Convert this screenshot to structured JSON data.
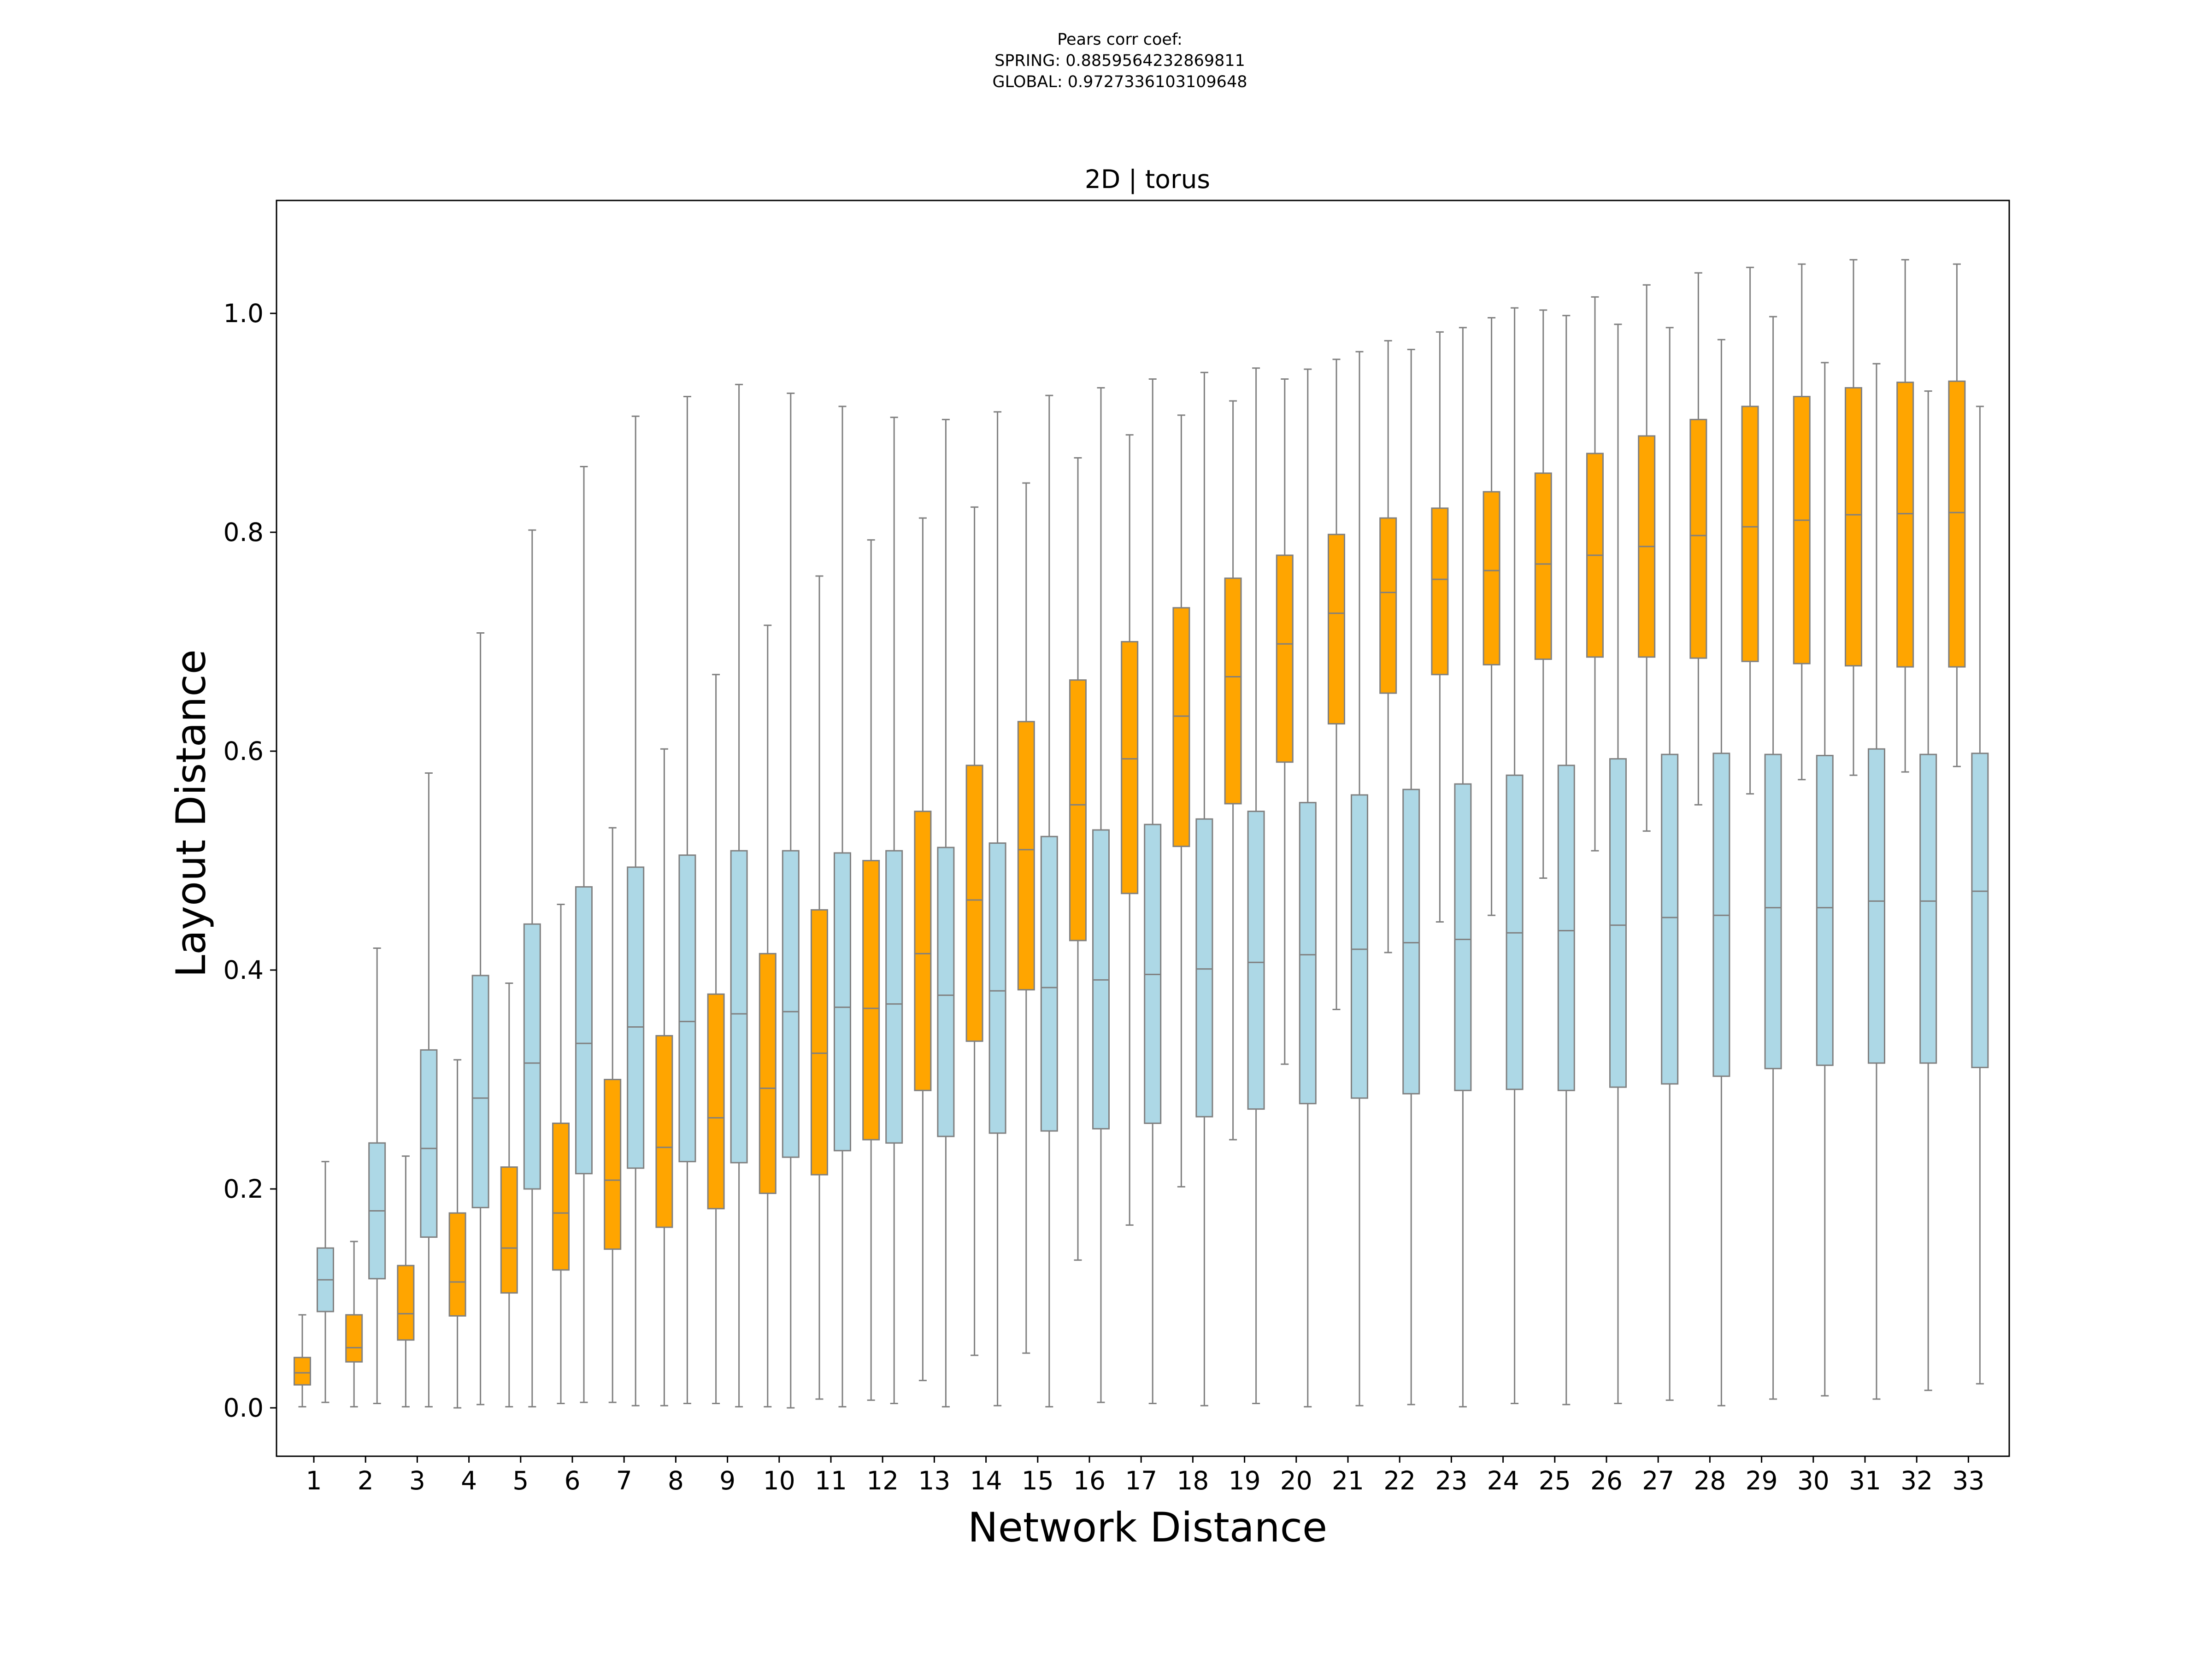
{
  "chart_data": {
    "type": "boxplot",
    "suptitle_lines": [
      "Pears corr coef:",
      "SPRING: 0.8859564232869811",
      "GLOBAL: 0.9727336103109648"
    ],
    "title": "2D | torus",
    "xlabel": "Network Distance",
    "ylabel": "Layout Distance",
    "ylim": [
      -0.05,
      1.1
    ],
    "yticks": [
      0.0,
      0.2,
      0.4,
      0.6,
      0.8,
      1.0
    ],
    "ytick_labels": [
      "0.0",
      "0.2",
      "0.4",
      "0.6",
      "0.8",
      "1.0"
    ],
    "categories": [
      "1",
      "2",
      "3",
      "4",
      "5",
      "6",
      "7",
      "8",
      "9",
      "10",
      "11",
      "12",
      "13",
      "14",
      "15",
      "16",
      "17",
      "18",
      "19",
      "20",
      "21",
      "22",
      "23",
      "24",
      "25",
      "26",
      "27",
      "28",
      "29",
      "30",
      "31",
      "32",
      "33"
    ],
    "colors": {
      "spring": "#ffa500",
      "global": "#add8e6",
      "edge": "#808080",
      "axis": "#000000"
    },
    "series": [
      {
        "name": "SPRING",
        "color": "#ffa500",
        "boxes": [
          {
            "min": 0.001,
            "q1": 0.021,
            "median": 0.032,
            "q3": 0.046,
            "max": 0.085
          },
          {
            "min": 0.001,
            "q1": 0.042,
            "median": 0.055,
            "q3": 0.085,
            "max": 0.152
          },
          {
            "min": 0.001,
            "q1": 0.062,
            "median": 0.086,
            "q3": 0.13,
            "max": 0.23
          },
          {
            "min": 0.0,
            "q1": 0.084,
            "median": 0.115,
            "q3": 0.178,
            "max": 0.318
          },
          {
            "min": 0.001,
            "q1": 0.105,
            "median": 0.146,
            "q3": 0.22,
            "max": 0.388
          },
          {
            "min": 0.004,
            "q1": 0.126,
            "median": 0.178,
            "q3": 0.26,
            "max": 0.46
          },
          {
            "min": 0.005,
            "q1": 0.145,
            "median": 0.208,
            "q3": 0.3,
            "max": 0.53
          },
          {
            "min": 0.002,
            "q1": 0.165,
            "median": 0.238,
            "q3": 0.34,
            "max": 0.602
          },
          {
            "min": 0.004,
            "q1": 0.182,
            "median": 0.265,
            "q3": 0.378,
            "max": 0.67
          },
          {
            "min": 0.001,
            "q1": 0.196,
            "median": 0.292,
            "q3": 0.415,
            "max": 0.715
          },
          {
            "min": 0.008,
            "q1": 0.213,
            "median": 0.324,
            "q3": 0.455,
            "max": 0.76
          },
          {
            "min": 0.007,
            "q1": 0.245,
            "median": 0.365,
            "q3": 0.5,
            "max": 0.793
          },
          {
            "min": 0.025,
            "q1": 0.29,
            "median": 0.415,
            "q3": 0.545,
            "max": 0.813
          },
          {
            "min": 0.048,
            "q1": 0.335,
            "median": 0.464,
            "q3": 0.587,
            "max": 0.823
          },
          {
            "min": 0.05,
            "q1": 0.382,
            "median": 0.51,
            "q3": 0.627,
            "max": 0.845
          },
          {
            "min": 0.135,
            "q1": 0.427,
            "median": 0.551,
            "q3": 0.665,
            "max": 0.868
          },
          {
            "min": 0.167,
            "q1": 0.47,
            "median": 0.593,
            "q3": 0.7,
            "max": 0.889
          },
          {
            "min": 0.202,
            "q1": 0.513,
            "median": 0.632,
            "q3": 0.731,
            "max": 0.907
          },
          {
            "min": 0.245,
            "q1": 0.552,
            "median": 0.668,
            "q3": 0.758,
            "max": 0.92
          },
          {
            "min": 0.314,
            "q1": 0.59,
            "median": 0.698,
            "q3": 0.779,
            "max": 0.94
          },
          {
            "min": 0.364,
            "q1": 0.625,
            "median": 0.726,
            "q3": 0.798,
            "max": 0.958
          },
          {
            "min": 0.416,
            "q1": 0.653,
            "median": 0.745,
            "q3": 0.813,
            "max": 0.975
          },
          {
            "min": 0.444,
            "q1": 0.67,
            "median": 0.757,
            "q3": 0.822,
            "max": 0.983
          },
          {
            "min": 0.45,
            "q1": 0.679,
            "median": 0.765,
            "q3": 0.837,
            "max": 0.996
          },
          {
            "min": 0.484,
            "q1": 0.684,
            "median": 0.771,
            "q3": 0.854,
            "max": 1.003
          },
          {
            "min": 0.509,
            "q1": 0.686,
            "median": 0.779,
            "q3": 0.872,
            "max": 1.015
          },
          {
            "min": 0.527,
            "q1": 0.686,
            "median": 0.787,
            "q3": 0.888,
            "max": 1.026
          },
          {
            "min": 0.551,
            "q1": 0.685,
            "median": 0.797,
            "q3": 0.903,
            "max": 1.037
          },
          {
            "min": 0.561,
            "q1": 0.682,
            "median": 0.805,
            "q3": 0.915,
            "max": 1.042
          },
          {
            "min": 0.574,
            "q1": 0.68,
            "median": 0.811,
            "q3": 0.924,
            "max": 1.045
          },
          {
            "min": 0.578,
            "q1": 0.678,
            "median": 0.816,
            "q3": 0.932,
            "max": 1.049
          },
          {
            "min": 0.581,
            "q1": 0.677,
            "median": 0.817,
            "q3": 0.937,
            "max": 1.049
          },
          {
            "min": 0.586,
            "q1": 0.677,
            "median": 0.818,
            "q3": 0.938,
            "max": 1.045
          }
        ]
      },
      {
        "name": "GLOBAL",
        "color": "#add8e6",
        "boxes": [
          {
            "min": 0.005,
            "q1": 0.088,
            "median": 0.117,
            "q3": 0.146,
            "max": 0.225
          },
          {
            "min": 0.004,
            "q1": 0.118,
            "median": 0.18,
            "q3": 0.242,
            "max": 0.42
          },
          {
            "min": 0.001,
            "q1": 0.156,
            "median": 0.237,
            "q3": 0.327,
            "max": 0.58
          },
          {
            "min": 0.003,
            "q1": 0.183,
            "median": 0.283,
            "q3": 0.395,
            "max": 0.708
          },
          {
            "min": 0.001,
            "q1": 0.2,
            "median": 0.315,
            "q3": 0.442,
            "max": 0.802
          },
          {
            "min": 0.005,
            "q1": 0.214,
            "median": 0.333,
            "q3": 0.476,
            "max": 0.86
          },
          {
            "min": 0.002,
            "q1": 0.219,
            "median": 0.348,
            "q3": 0.494,
            "max": 0.906
          },
          {
            "min": 0.004,
            "q1": 0.225,
            "median": 0.353,
            "q3": 0.505,
            "max": 0.924
          },
          {
            "min": 0.001,
            "q1": 0.224,
            "median": 0.36,
            "q3": 0.509,
            "max": 0.935
          },
          {
            "min": 0.0,
            "q1": 0.229,
            "median": 0.362,
            "q3": 0.509,
            "max": 0.927
          },
          {
            "min": 0.001,
            "q1": 0.235,
            "median": 0.366,
            "q3": 0.507,
            "max": 0.915
          },
          {
            "min": 0.004,
            "q1": 0.242,
            "median": 0.369,
            "q3": 0.509,
            "max": 0.905
          },
          {
            "min": 0.001,
            "q1": 0.248,
            "median": 0.377,
            "q3": 0.512,
            "max": 0.903
          },
          {
            "min": 0.002,
            "q1": 0.251,
            "median": 0.381,
            "q3": 0.516,
            "max": 0.91
          },
          {
            "min": 0.001,
            "q1": 0.253,
            "median": 0.384,
            "q3": 0.522,
            "max": 0.925
          },
          {
            "min": 0.005,
            "q1": 0.255,
            "median": 0.391,
            "q3": 0.528,
            "max": 0.932
          },
          {
            "min": 0.004,
            "q1": 0.26,
            "median": 0.396,
            "q3": 0.533,
            "max": 0.94
          },
          {
            "min": 0.002,
            "q1": 0.266,
            "median": 0.401,
            "q3": 0.538,
            "max": 0.946
          },
          {
            "min": 0.004,
            "q1": 0.273,
            "median": 0.407,
            "q3": 0.545,
            "max": 0.95
          },
          {
            "min": 0.001,
            "q1": 0.278,
            "median": 0.414,
            "q3": 0.553,
            "max": 0.949
          },
          {
            "min": 0.002,
            "q1": 0.283,
            "median": 0.419,
            "q3": 0.56,
            "max": 0.965
          },
          {
            "min": 0.003,
            "q1": 0.287,
            "median": 0.425,
            "q3": 0.565,
            "max": 0.967
          },
          {
            "min": 0.001,
            "q1": 0.29,
            "median": 0.428,
            "q3": 0.57,
            "max": 0.987
          },
          {
            "min": 0.004,
            "q1": 0.291,
            "median": 0.434,
            "q3": 0.578,
            "max": 1.005
          },
          {
            "min": 0.003,
            "q1": 0.29,
            "median": 0.436,
            "q3": 0.587,
            "max": 0.998
          },
          {
            "min": 0.004,
            "q1": 0.293,
            "median": 0.441,
            "q3": 0.593,
            "max": 0.99
          },
          {
            "min": 0.007,
            "q1": 0.296,
            "median": 0.448,
            "q3": 0.597,
            "max": 0.987
          },
          {
            "min": 0.002,
            "q1": 0.303,
            "median": 0.45,
            "q3": 0.598,
            "max": 0.976
          },
          {
            "min": 0.008,
            "q1": 0.31,
            "median": 0.457,
            "q3": 0.597,
            "max": 0.997
          },
          {
            "min": 0.011,
            "q1": 0.313,
            "median": 0.457,
            "q3": 0.596,
            "max": 0.955
          },
          {
            "min": 0.008,
            "q1": 0.315,
            "median": 0.463,
            "q3": 0.602,
            "max": 0.954
          },
          {
            "min": 0.016,
            "q1": 0.315,
            "median": 0.463,
            "q3": 0.597,
            "max": 0.929
          },
          {
            "min": 0.022,
            "q1": 0.311,
            "median": 0.472,
            "q3": 0.598,
            "max": 0.915
          }
        ]
      }
    ]
  }
}
